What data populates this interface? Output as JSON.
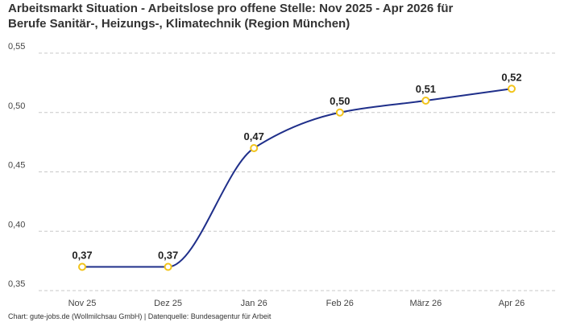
{
  "title_lines": [
    "Arbeitsmarkt Situation - Arbeitslose pro offene Stelle: Nov 2025 - Apr 2026 für",
    "Berufe Sanitär-, Heizungs-, Klimatechnik (Region München)"
  ],
  "footer": "Chart: gute-jobs.de (Wollmilchsau GmbH) | Datenquelle: Bundesagentur für Arbeit",
  "colors": {
    "line": "#1f2f8a",
    "marker_stroke": "#f2c41b",
    "marker_fill": "#ffffff",
    "grid": "#c8c8c8"
  },
  "chart_data": {
    "type": "line",
    "title": "Arbeitsmarkt Situation - Arbeitslose pro offene Stelle: Nov 2025 - Apr 2026 für Berufe Sanitär-, Heizungs-, Klimatechnik (Region München)",
    "categories": [
      "Nov 25",
      "Dez 25",
      "Jan 26",
      "Feb 26",
      "März 26",
      "Apr 26"
    ],
    "series": [
      {
        "values": [
          0.37,
          0.37,
          0.47,
          0.5,
          0.51,
          0.52
        ],
        "labels": [
          "0,37",
          "0,37",
          "0,47",
          "0,50",
          "0,51",
          "0,52"
        ]
      }
    ],
    "ylim": [
      0.35,
      0.55
    ],
    "y_ticks": [
      0.35,
      0.4,
      0.45,
      0.5,
      0.55
    ],
    "y_tick_labels": [
      "0,35",
      "0,40",
      "0,45",
      "0,50",
      "0,55"
    ],
    "grid": true,
    "grid_style": "dashed",
    "xlabel": "",
    "ylabel": "",
    "curve": "smooth",
    "legend": "none"
  }
}
